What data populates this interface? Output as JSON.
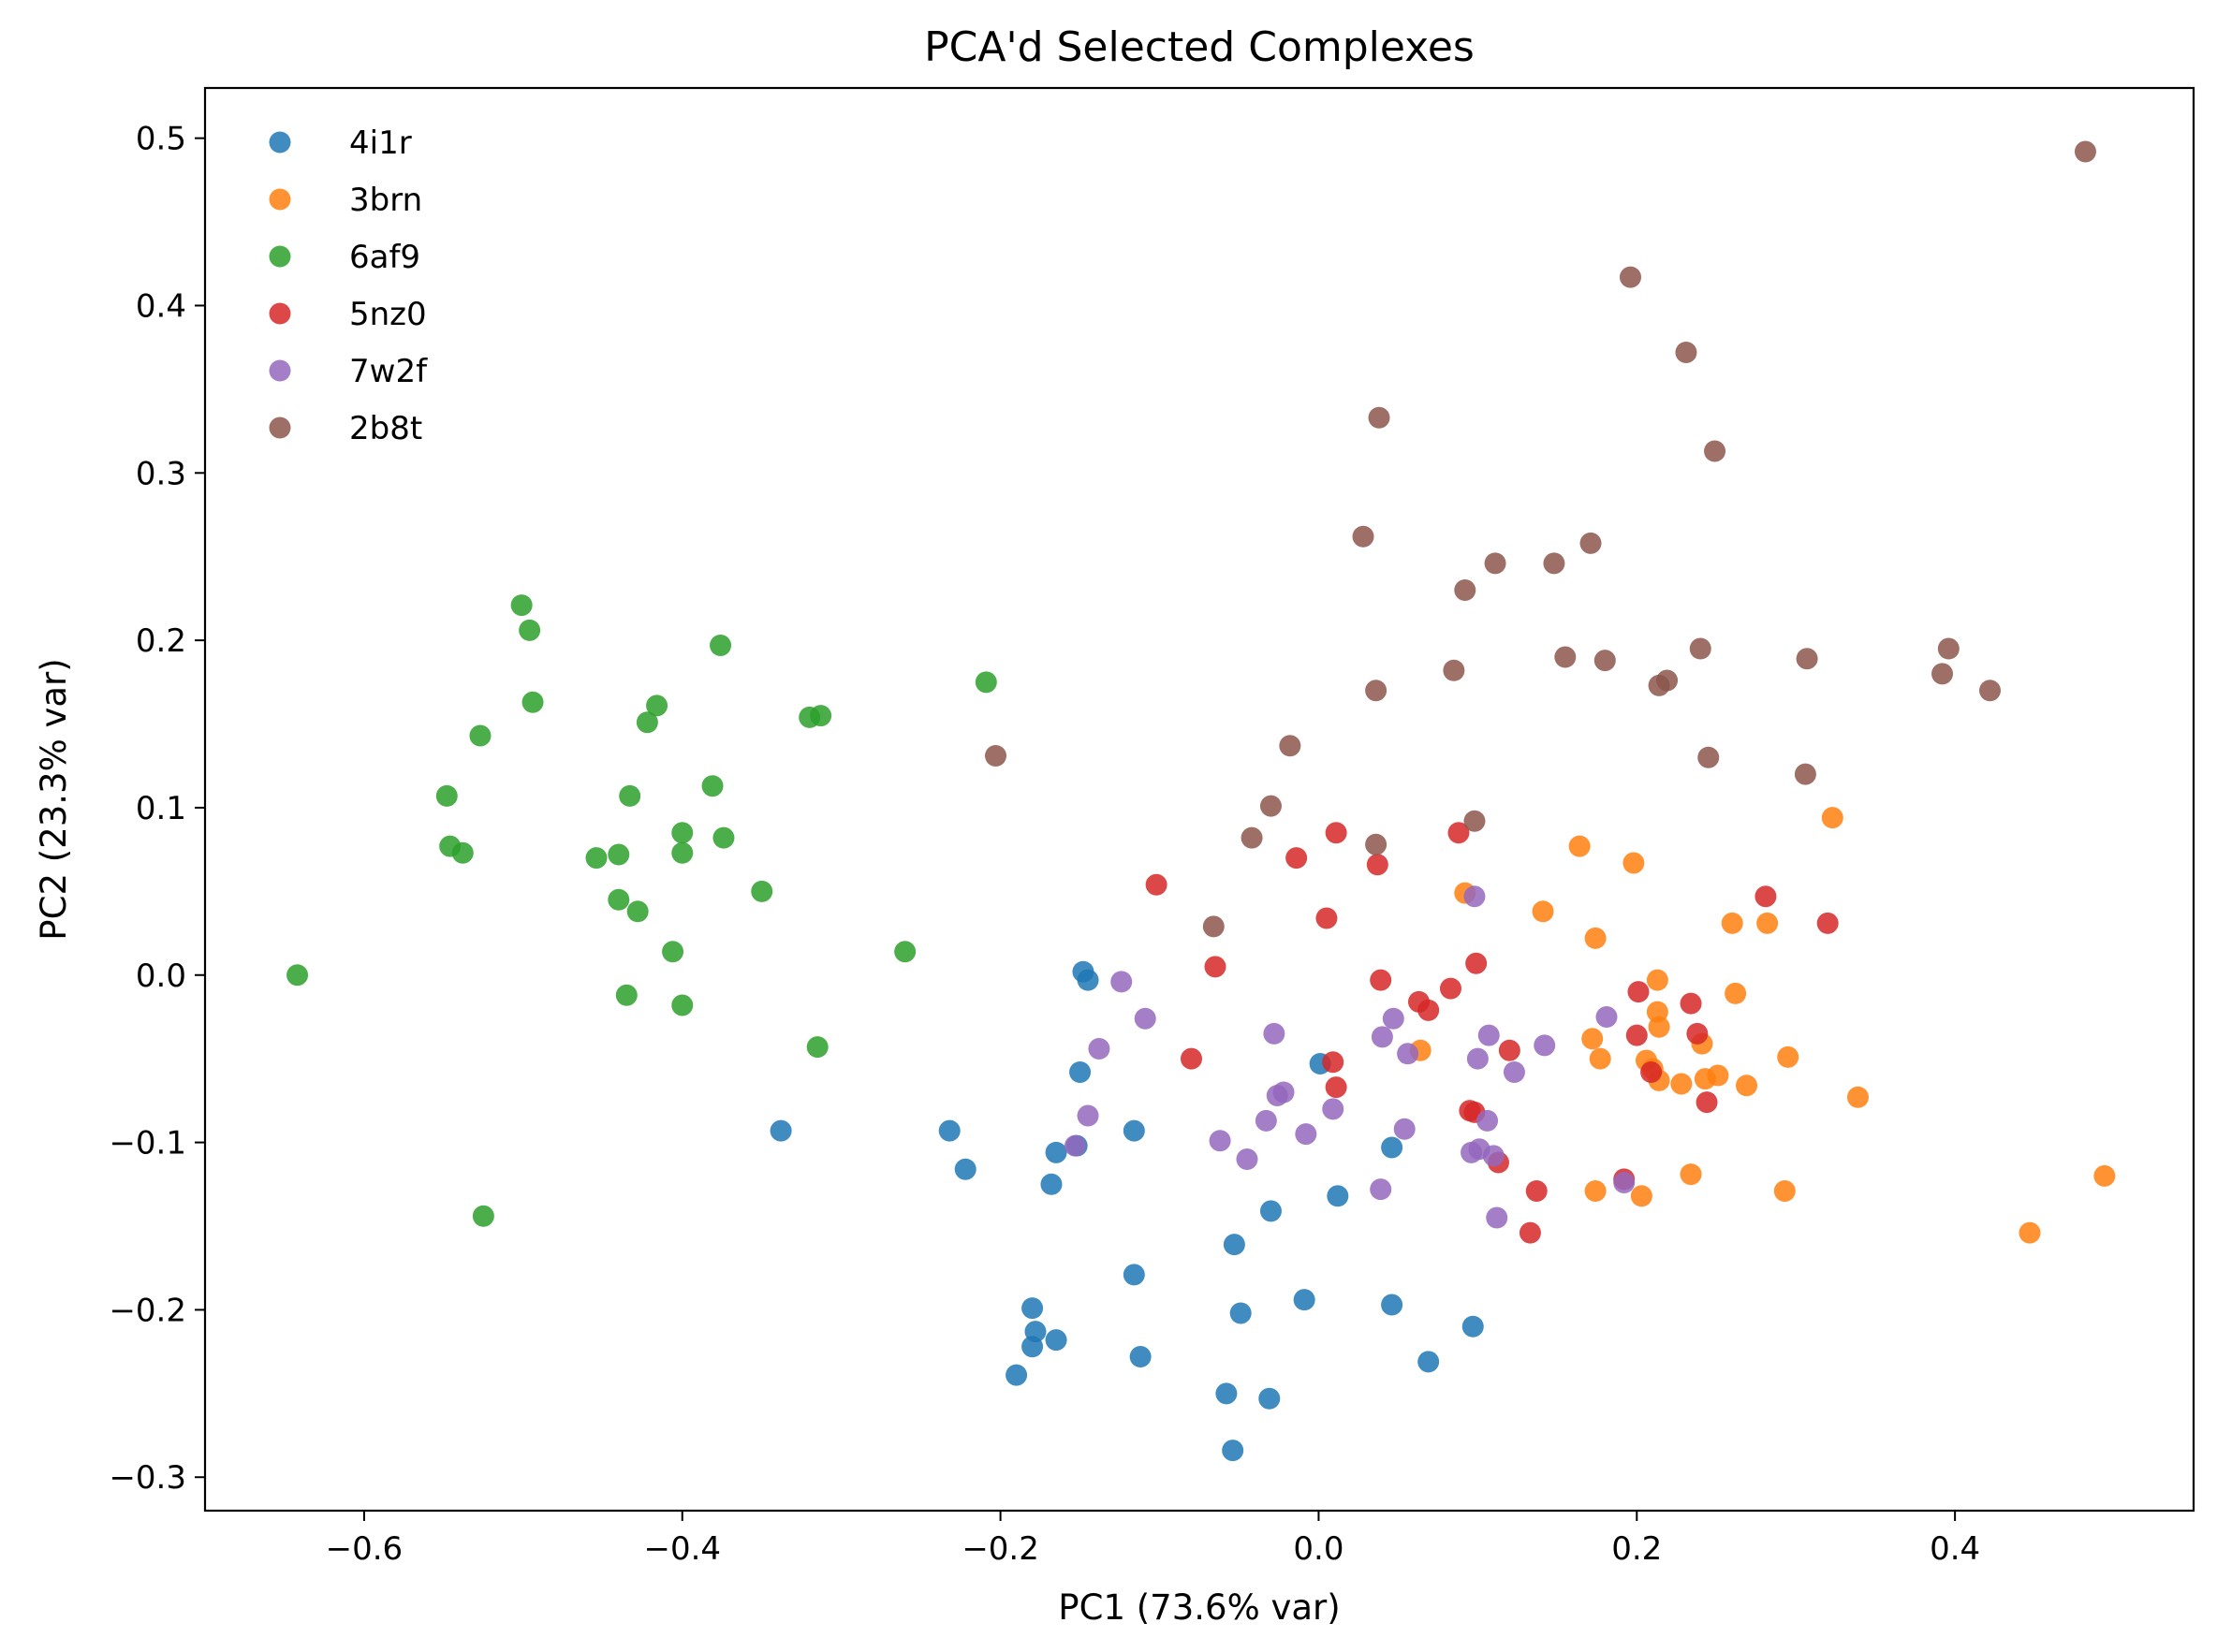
{
  "chart_data": {
    "type": "scatter",
    "title": "PCA'd Selected Complexes",
    "xlabel": "PC1 (73.6% var)",
    "ylabel": "PC2 (23.3% var)",
    "xlim": [
      -0.7,
      0.55
    ],
    "ylim": [
      -0.32,
      0.53
    ],
    "xticks": [
      -0.6,
      -0.4,
      -0.2,
      0.0,
      0.2,
      0.4
    ],
    "xtick_labels": [
      "−0.6",
      "−0.4",
      "−0.2",
      "0.0",
      "0.2",
      "0.4"
    ],
    "yticks": [
      -0.3,
      -0.2,
      -0.1,
      0.0,
      0.1,
      0.2,
      0.3,
      0.4,
      0.5
    ],
    "ytick_labels": [
      "−0.3",
      "−0.2",
      "−0.1",
      "0.0",
      "0.1",
      "0.2",
      "0.3",
      "0.4",
      "0.5"
    ],
    "grid": false,
    "legend_position": "upper-left",
    "series": [
      {
        "name": "4i1r",
        "color": "#1f77b4",
        "points": [
          [
            -0.148,
            0.002
          ],
          [
            -0.145,
            -0.003
          ],
          [
            -0.15,
            -0.058
          ],
          [
            -0.165,
            -0.106
          ],
          [
            -0.152,
            -0.102
          ],
          [
            -0.168,
            -0.125
          ],
          [
            -0.116,
            -0.093
          ],
          [
            -0.232,
            -0.093
          ],
          [
            -0.222,
            -0.116
          ],
          [
            -0.338,
            -0.093
          ],
          [
            -0.116,
            -0.179
          ],
          [
            -0.18,
            -0.199
          ],
          [
            -0.178,
            -0.213
          ],
          [
            -0.165,
            -0.218
          ],
          [
            -0.18,
            -0.222
          ],
          [
            -0.112,
            -0.228
          ],
          [
            -0.19,
            -0.239
          ],
          [
            -0.058,
            -0.25
          ],
          [
            -0.031,
            -0.253
          ],
          [
            -0.054,
            -0.284
          ],
          [
            -0.053,
            -0.161
          ],
          [
            -0.049,
            -0.202
          ],
          [
            -0.03,
            -0.141
          ],
          [
            -0.009,
            -0.194
          ],
          [
            0.001,
            -0.053
          ],
          [
            0.012,
            -0.132
          ],
          [
            0.046,
            -0.103
          ],
          [
            0.046,
            -0.197
          ],
          [
            0.069,
            -0.231
          ],
          [
            0.097,
            -0.21
          ]
        ]
      },
      {
        "name": "3brn",
        "color": "#ff7f0e",
        "points": [
          [
            0.092,
            0.049
          ],
          [
            0.141,
            0.038
          ],
          [
            0.164,
            0.077
          ],
          [
            0.198,
            0.067
          ],
          [
            0.174,
            0.022
          ],
          [
            0.172,
            -0.038
          ],
          [
            0.177,
            -0.05
          ],
          [
            0.213,
            -0.003
          ],
          [
            0.213,
            -0.022
          ],
          [
            0.214,
            -0.031
          ],
          [
            0.241,
            -0.041
          ],
          [
            0.206,
            -0.051
          ],
          [
            0.214,
            -0.063
          ],
          [
            0.21,
            -0.056
          ],
          [
            0.228,
            -0.065
          ],
          [
            0.243,
            -0.062
          ],
          [
            0.251,
            -0.06
          ],
          [
            0.269,
            -0.066
          ],
          [
            0.262,
            -0.011
          ],
          [
            0.26,
            0.031
          ],
          [
            0.282,
            0.031
          ],
          [
            0.295,
            -0.049
          ],
          [
            0.323,
            0.094
          ],
          [
            0.339,
            -0.073
          ],
          [
            0.234,
            -0.119
          ],
          [
            0.174,
            -0.129
          ],
          [
            0.203,
            -0.132
          ],
          [
            0.293,
            -0.129
          ],
          [
            0.447,
            -0.154
          ],
          [
            0.494,
            -0.12
          ],
          [
            0.064,
            -0.045
          ]
        ]
      },
      {
        "name": "6af9",
        "color": "#2ca02c",
        "points": [
          [
            -0.501,
            0.221
          ],
          [
            -0.496,
            0.206
          ],
          [
            -0.494,
            0.163
          ],
          [
            -0.376,
            0.197
          ],
          [
            -0.209,
            0.175
          ],
          [
            -0.416,
            0.161
          ],
          [
            -0.422,
            0.151
          ],
          [
            -0.32,
            0.154
          ],
          [
            -0.313,
            0.155
          ],
          [
            -0.527,
            0.143
          ],
          [
            -0.548,
            0.107
          ],
          [
            -0.433,
            0.107
          ],
          [
            -0.381,
            0.113
          ],
          [
            -0.546,
            0.077
          ],
          [
            -0.538,
            0.073
          ],
          [
            -0.454,
            0.07
          ],
          [
            -0.44,
            0.072
          ],
          [
            -0.4,
            0.085
          ],
          [
            -0.4,
            0.073
          ],
          [
            -0.374,
            0.082
          ],
          [
            -0.44,
            0.045
          ],
          [
            -0.428,
            0.038
          ],
          [
            -0.35,
            0.05
          ],
          [
            -0.406,
            0.014
          ],
          [
            -0.26,
            0.014
          ],
          [
            -0.642,
            0.0
          ],
          [
            -0.435,
            -0.012
          ],
          [
            -0.4,
            -0.018
          ],
          [
            -0.315,
            -0.043
          ],
          [
            -0.525,
            -0.144
          ]
        ]
      },
      {
        "name": "5nz0",
        "color": "#d62728",
        "points": [
          [
            -0.102,
            0.054
          ],
          [
            -0.065,
            0.005
          ],
          [
            -0.08,
            -0.05
          ],
          [
            -0.014,
            0.07
          ],
          [
            0.005,
            0.034
          ],
          [
            0.011,
            0.085
          ],
          [
            0.037,
            0.066
          ],
          [
            0.088,
            0.085
          ],
          [
            0.039,
            -0.003
          ],
          [
            0.063,
            -0.016
          ],
          [
            0.069,
            -0.021
          ],
          [
            0.083,
            -0.008
          ],
          [
            0.099,
            0.007
          ],
          [
            0.009,
            -0.052
          ],
          [
            0.011,
            -0.067
          ],
          [
            0.12,
            -0.045
          ],
          [
            0.095,
            -0.081
          ],
          [
            0.098,
            -0.082
          ],
          [
            0.113,
            -0.112
          ],
          [
            0.137,
            -0.129
          ],
          [
            0.133,
            -0.154
          ],
          [
            0.201,
            -0.01
          ],
          [
            0.2,
            -0.036
          ],
          [
            0.209,
            -0.058
          ],
          [
            0.234,
            -0.017
          ],
          [
            0.238,
            -0.035
          ],
          [
            0.244,
            -0.076
          ],
          [
            0.281,
            0.047
          ],
          [
            0.32,
            0.031
          ],
          [
            0.192,
            -0.122
          ]
        ]
      },
      {
        "name": "7w2f",
        "color": "#9467bd",
        "points": [
          [
            -0.124,
            -0.004
          ],
          [
            -0.109,
            -0.026
          ],
          [
            -0.138,
            -0.044
          ],
          [
            -0.145,
            -0.084
          ],
          [
            -0.153,
            -0.102
          ],
          [
            -0.062,
            -0.099
          ],
          [
            -0.045,
            -0.11
          ],
          [
            -0.028,
            -0.035
          ],
          [
            -0.026,
            -0.072
          ],
          [
            -0.033,
            -0.087
          ],
          [
            -0.022,
            -0.07
          ],
          [
            -0.008,
            -0.095
          ],
          [
            0.009,
            -0.08
          ],
          [
            0.04,
            -0.037
          ],
          [
            0.047,
            -0.026
          ],
          [
            0.056,
            -0.047
          ],
          [
            0.054,
            -0.092
          ],
          [
            0.039,
            -0.128
          ],
          [
            0.098,
            0.047
          ],
          [
            0.107,
            -0.036
          ],
          [
            0.1,
            -0.05
          ],
          [
            0.106,
            -0.087
          ],
          [
            0.096,
            -0.106
          ],
          [
            0.101,
            -0.104
          ],
          [
            0.11,
            -0.108
          ],
          [
            0.112,
            -0.145
          ],
          [
            0.123,
            -0.058
          ],
          [
            0.142,
            -0.042
          ],
          [
            0.181,
            -0.025
          ],
          [
            0.192,
            -0.124
          ]
        ]
      },
      {
        "name": "2b8t",
        "color": "#8c564b",
        "points": [
          [
            -0.203,
            0.131
          ],
          [
            -0.018,
            0.137
          ],
          [
            -0.03,
            0.101
          ],
          [
            -0.042,
            0.082
          ],
          [
            -0.066,
            0.029
          ],
          [
            0.036,
            0.078
          ],
          [
            0.036,
            0.17
          ],
          [
            0.028,
            0.262
          ],
          [
            0.038,
            0.333
          ],
          [
            0.085,
            0.182
          ],
          [
            0.092,
            0.23
          ],
          [
            0.098,
            0.092
          ],
          [
            0.111,
            0.246
          ],
          [
            0.148,
            0.246
          ],
          [
            0.171,
            0.258
          ],
          [
            0.155,
            0.19
          ],
          [
            0.18,
            0.188
          ],
          [
            0.196,
            0.417
          ],
          [
            0.231,
            0.372
          ],
          [
            0.249,
            0.313
          ],
          [
            0.214,
            0.173
          ],
          [
            0.219,
            0.176
          ],
          [
            0.24,
            0.195
          ],
          [
            0.245,
            0.13
          ],
          [
            0.307,
            0.189
          ],
          [
            0.306,
            0.12
          ],
          [
            0.392,
            0.18
          ],
          [
            0.396,
            0.195
          ],
          [
            0.422,
            0.17
          ],
          [
            0.482,
            0.492
          ]
        ]
      }
    ]
  }
}
